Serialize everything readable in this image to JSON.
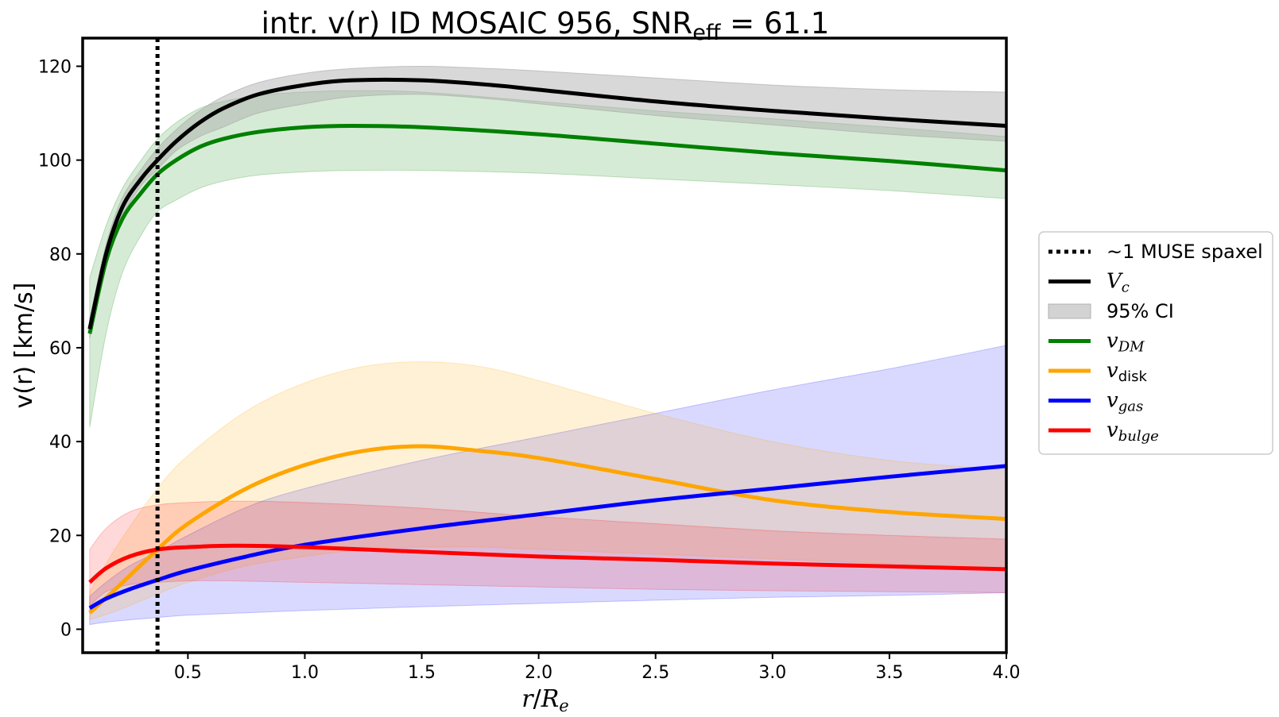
{
  "chart_data": {
    "type": "line",
    "title": "intr. v(r) ID MOSAIC 956, SNR",
    "title_sub": "eff",
    "title_tail": " = 61.1",
    "xlabel_main": "r",
    "xlabel_sep": "/",
    "xlabel_R": "R",
    "xlabel_sub": "e",
    "ylabel": "v(r) [km/s]",
    "xlim": [
      0.05,
      4.0
    ],
    "ylim": [
      -5,
      126
    ],
    "x_ticks": [
      0.5,
      1.0,
      1.5,
      2.0,
      2.5,
      3.0,
      3.5,
      4.0
    ],
    "x_tick_labels": [
      "0.5",
      "1.0",
      "1.5",
      "2.0",
      "2.5",
      "3.0",
      "3.5",
      "4.0"
    ],
    "y_ticks": [
      0,
      20,
      40,
      60,
      80,
      100,
      120
    ],
    "y_tick_labels": [
      "0",
      "20",
      "40",
      "60",
      "80",
      "100",
      "120"
    ],
    "vline_x": 0.37,
    "legend_position": "right",
    "legend": [
      {
        "label": "~1 MUSE spaxel",
        "kind": "dotted",
        "color": "#000000"
      },
      {
        "label": "V",
        "sub": "c",
        "kind": "line",
        "color": "#000000"
      },
      {
        "label": "95% CI",
        "kind": "patch",
        "color": "#d3d3d3"
      },
      {
        "label": "v",
        "sub": "DM",
        "kind": "line",
        "color": "#008000"
      },
      {
        "label": "v",
        "sub": "disk",
        "kind": "line",
        "color": "#ffa500"
      },
      {
        "label": "v",
        "sub": "gas",
        "kind": "line",
        "color": "#0000ff"
      },
      {
        "label": "v",
        "sub": "bulge",
        "kind": "line",
        "color": "#ff0000"
      }
    ],
    "series": [
      {
        "name": "V_c",
        "color": "#000000",
        "band_color": "#a9a9a9",
        "band_opacity": 0.45,
        "x": [
          0.08,
          0.15,
          0.22,
          0.3,
          0.37,
          0.45,
          0.55,
          0.65,
          0.8,
          1.0,
          1.2,
          1.5,
          1.8,
          2.0,
          2.5,
          3.0,
          3.5,
          4.0
        ],
        "y": [
          64,
          80,
          90,
          96,
          100,
          104,
          108,
          111,
          114,
          116,
          117,
          117,
          116,
          115,
          112.5,
          110.5,
          108.8,
          107.3
        ],
        "lower": [
          62,
          79,
          88,
          94.5,
          98,
          102,
          105,
          107,
          110,
          112,
          113.5,
          114,
          113,
          112,
          109.5,
          107.5,
          105.5,
          104
        ],
        "upper": [
          66,
          82,
          92,
          98,
          102.5,
          106.5,
          110.5,
          113.5,
          116.5,
          118.5,
          119.5,
          120,
          119.5,
          119,
          117.5,
          116,
          115,
          114.5
        ]
      },
      {
        "name": "v_DM",
        "color": "#008000",
        "band_color": "#008000",
        "band_opacity": 0.16,
        "x": [
          0.08,
          0.15,
          0.22,
          0.3,
          0.37,
          0.45,
          0.55,
          0.65,
          0.8,
          1.0,
          1.2,
          1.5,
          2.0,
          2.5,
          3.0,
          3.5,
          4.0
        ],
        "y": [
          63,
          78.5,
          87.5,
          93,
          97,
          100,
          102.8,
          104.5,
          106,
          107,
          107.3,
          107,
          105.5,
          103.5,
          101.5,
          99.8,
          97.8
        ],
        "lower": [
          43,
          63,
          76,
          84,
          89,
          91.5,
          94,
          95.5,
          96.8,
          97.5,
          97.8,
          97.8,
          97.2,
          96,
          94.8,
          93.5,
          91.8
        ],
        "upper": [
          75,
          86,
          94,
          100,
          104.5,
          108,
          111,
          112.5,
          113.8,
          114.5,
          114.8,
          114.5,
          112.5,
          110.5,
          108.8,
          107,
          105
        ]
      },
      {
        "name": "v_disk",
        "color": "#ffa500",
        "band_color": "#ffa500",
        "band_opacity": 0.16,
        "x": [
          0.08,
          0.2,
          0.37,
          0.5,
          0.75,
          1.0,
          1.25,
          1.5,
          1.75,
          2.0,
          2.5,
          3.0,
          3.5,
          4.0
        ],
        "y": [
          3.5,
          9,
          17,
          22.5,
          30,
          35,
          38,
          39,
          38,
          36.5,
          32,
          27.5,
          25,
          23.5
        ],
        "lower": [
          2,
          4,
          7.5,
          10,
          13.5,
          15.5,
          17,
          17.5,
          17.5,
          17,
          16,
          15,
          14,
          13
        ],
        "upper": [
          8,
          18,
          30,
          37,
          46.5,
          52.5,
          56,
          57,
          56,
          53,
          46,
          40,
          36,
          34
        ]
      },
      {
        "name": "v_gas",
        "color": "#0000ff",
        "band_color": "#0000ff",
        "band_opacity": 0.15,
        "x": [
          0.08,
          0.15,
          0.25,
          0.37,
          0.5,
          0.75,
          1.0,
          1.5,
          2.0,
          2.5,
          3.0,
          3.5,
          4.0
        ],
        "y": [
          4.5,
          6.5,
          8.5,
          10.5,
          12.5,
          15.5,
          18,
          21.5,
          24.5,
          27.5,
          30,
          32.5,
          34.8
        ],
        "lower": [
          1,
          1.5,
          2,
          2.5,
          3,
          3.5,
          4,
          4.8,
          5.5,
          6.2,
          6.8,
          7.2,
          7.8
        ],
        "upper": [
          7,
          10,
          13.5,
          16.5,
          20,
          26,
          30,
          36,
          41,
          46,
          51,
          55.5,
          60.5
        ]
      },
      {
        "name": "v_bulge",
        "color": "#ff0000",
        "band_color": "#ff0000",
        "band_opacity": 0.15,
        "x": [
          0.08,
          0.15,
          0.25,
          0.37,
          0.5,
          0.7,
          1.0,
          1.5,
          2.0,
          2.5,
          3.0,
          3.5,
          4.0
        ],
        "y": [
          10,
          13,
          15.5,
          17,
          17.5,
          17.8,
          17.5,
          16.5,
          15.5,
          14.8,
          14,
          13.4,
          12.8
        ],
        "lower": [
          5,
          8,
          9.5,
          10,
          10.3,
          10.3,
          10,
          9.5,
          9,
          8.5,
          8.2,
          8,
          7.8
        ],
        "upper": [
          17,
          21.5,
          25,
          26.5,
          27,
          27.3,
          27,
          25.8,
          24,
          22.5,
          21,
          20,
          19.2
        ]
      }
    ]
  }
}
